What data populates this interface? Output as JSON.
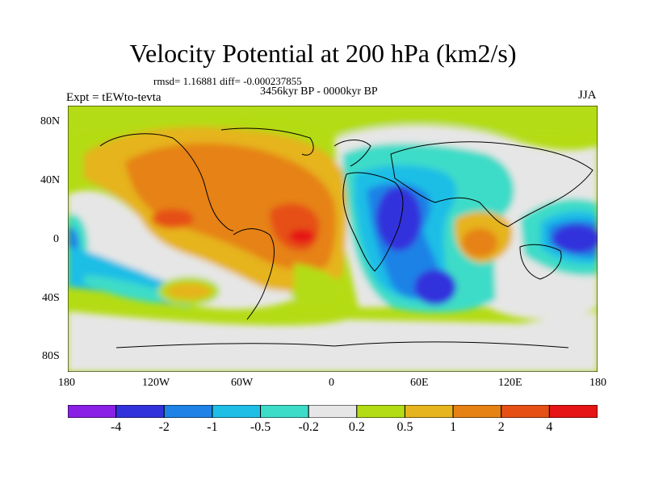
{
  "title": "Velocity Potential at 200 hPa (km2/s)",
  "stats": "rmsd= 1.16881 diff= -0.000237855",
  "period": "3456kyr BP - 0000kyr BP",
  "experiment": "Expt = tEWto-tevta",
  "season": "JJA",
  "lat_labels": [
    "80N",
    "40N",
    "0",
    "40S",
    "80S"
  ],
  "lon_labels": [
    "180",
    "120W",
    "60W",
    "0",
    "60E",
    "120E",
    "180"
  ],
  "colorbar": {
    "labels": [
      "-4",
      "-2",
      "-1",
      "-0.5",
      "-0.2",
      "0.2",
      "0.5",
      "1",
      "2",
      "4"
    ],
    "colors": [
      "#8a20e6",
      "#3232dc",
      "#1e82e6",
      "#1ebee6",
      "#3cdcc8",
      "#e6e6e6",
      "#b4dc14",
      "#e6b41e",
      "#e68214",
      "#e65014",
      "#e61414"
    ]
  }
}
